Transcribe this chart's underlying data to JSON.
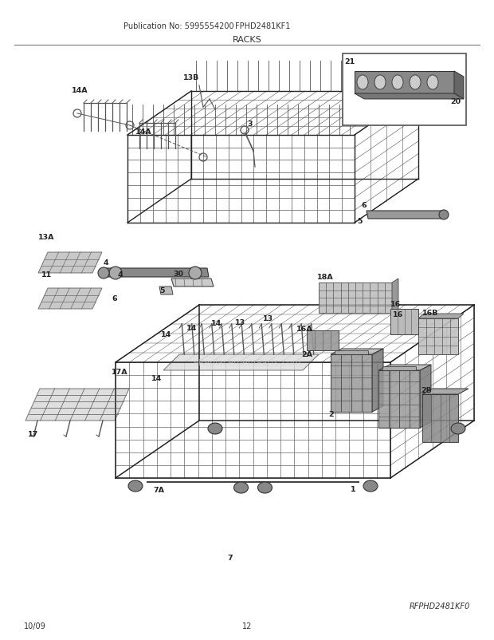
{
  "pub_no": "Publication No: 5995554200",
  "model": "FPHD2481KF1",
  "title": "RACKS",
  "ref_code": "RFPHD2481KF0",
  "date": "10/09",
  "page": "12",
  "bg_color": "#ffffff",
  "watermark": "eReplacementParts.com",
  "wire_color": "#555555",
  "dark_color": "#222222",
  "gray_fill": "#aaaaaa",
  "light_gray": "#cccccc"
}
